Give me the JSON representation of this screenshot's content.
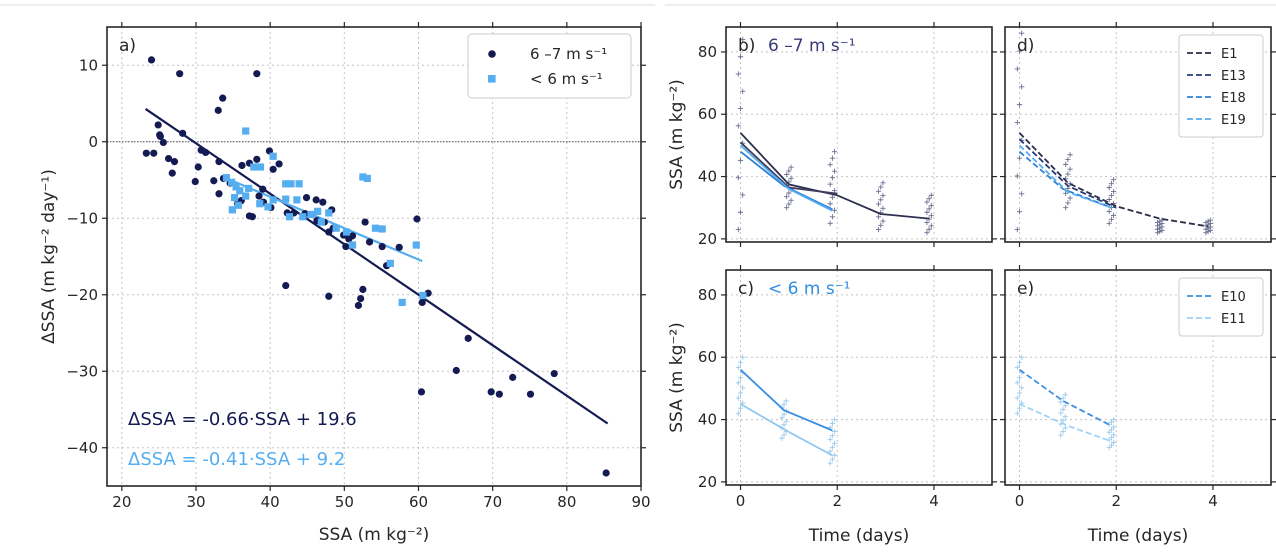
{
  "colors": {
    "dark": "#141a52",
    "light": "#55aef0",
    "mid": "#3d3d5c",
    "blue": "#2e7fd6",
    "paleblue": "#9ed2f5"
  },
  "chart_data": [
    {
      "id": "a",
      "type": "scatter",
      "panel_label": "a)",
      "xlabel": "SSA (m kg⁻²)",
      "ylabel": "ΔSSA (m kg⁻² day⁻¹)",
      "xlim": [
        18,
        90
      ],
      "ylim": [
        -45,
        15
      ],
      "xticks": [
        20,
        30,
        40,
        50,
        60,
        70,
        80,
        90
      ],
      "yticks": [
        -40,
        -30,
        -20,
        -10,
        0,
        10
      ],
      "grid": true,
      "legend": {
        "position": "top-right",
        "entries": [
          {
            "label": "6 –7 m s⁻¹",
            "marker": "circle",
            "color": "#141a52"
          },
          {
            "label": "< 6 m s⁻¹",
            "marker": "square",
            "color": "#55aef0"
          }
        ]
      },
      "series": [
        {
          "name": "6 –7 m s⁻¹",
          "marker": "circle",
          "color": "#141a52",
          "points": [
            [
              24,
              10.7
            ],
            [
              27.8,
              8.9
            ],
            [
              38.2,
              8.9
            ],
            [
              33.6,
              5.7
            ],
            [
              33,
              4.1
            ],
            [
              24.9,
              2.2
            ],
            [
              25.2,
              0.7
            ],
            [
              25.1,
              0.9
            ],
            [
              28.2,
              1.1
            ],
            [
              25.6,
              -0.1
            ],
            [
              23.3,
              -1.5
            ],
            [
              24.3,
              -1.5
            ],
            [
              26.3,
              -2.2
            ],
            [
              27.1,
              -2.6
            ],
            [
              30.7,
              -1.1
            ],
            [
              31.3,
              -1.4
            ],
            [
              30.3,
              -3.3
            ],
            [
              33.1,
              -2.6
            ],
            [
              32.4,
              -5.1
            ],
            [
              29.9,
              -5.2
            ],
            [
              26.8,
              -4.1
            ],
            [
              33.7,
              -4.8
            ],
            [
              34.6,
              -5.4
            ],
            [
              36.2,
              -3.1
            ],
            [
              37.2,
              -2.8
            ],
            [
              38.2,
              -2.3
            ],
            [
              39.9,
              -1.2
            ],
            [
              41.2,
              -2.9
            ],
            [
              40.4,
              -3.6
            ],
            [
              39,
              -6.2
            ],
            [
              38.5,
              -7.1
            ],
            [
              39.1,
              -7.9
            ],
            [
              36.1,
              -7.7
            ],
            [
              35.6,
              -8.1
            ],
            [
              33.1,
              -6.8
            ],
            [
              37.2,
              -9.7
            ],
            [
              37.6,
              -9.8
            ],
            [
              40.1,
              -8.6
            ],
            [
              42.3,
              -9.3
            ],
            [
              43.2,
              -9.3
            ],
            [
              44.9,
              -7.3
            ],
            [
              46.2,
              -7.6
            ],
            [
              47.1,
              -7.9
            ],
            [
              48.3,
              -8.9
            ],
            [
              47.3,
              -10.5
            ],
            [
              48.5,
              -11.3
            ],
            [
              49.9,
              -12.2
            ],
            [
              50.2,
              -13.7
            ],
            [
              50.6,
              -12.7
            ],
            [
              51.1,
              -12.3
            ],
            [
              47.9,
              -11.8
            ],
            [
              46.3,
              -10.3
            ],
            [
              44.7,
              -9.4
            ],
            [
              52.8,
              -10.5
            ],
            [
              53.4,
              -13.1
            ],
            [
              55.1,
              -13.7
            ],
            [
              55.7,
              -16.2
            ],
            [
              57.4,
              -13.8
            ],
            [
              59.8,
              -10.1
            ],
            [
              52.5,
              -19.3
            ],
            [
              52.2,
              -20.5
            ],
            [
              51.9,
              -21.4
            ],
            [
              47.9,
              -20.2
            ],
            [
              42.1,
              -18.8
            ],
            [
              60.5,
              -21
            ],
            [
              61.3,
              -19.8
            ],
            [
              66.7,
              -25.7
            ],
            [
              65.1,
              -29.9
            ],
            [
              60.4,
              -32.7
            ],
            [
              69.8,
              -32.7
            ],
            [
              70.9,
              -33
            ],
            [
              72.7,
              -30.8
            ],
            [
              75.1,
              -33
            ],
            [
              78.3,
              -30.3
            ],
            [
              85.3,
              -43.3
            ]
          ]
        },
        {
          "name": "< 6 m s⁻¹",
          "marker": "square",
          "color": "#55aef0",
          "points": [
            [
              36.7,
              1.4
            ],
            [
              40.4,
              -1.9
            ],
            [
              37.8,
              -3.3
            ],
            [
              38.7,
              -3.3
            ],
            [
              34.1,
              -4.7
            ],
            [
              34.8,
              -5.3
            ],
            [
              35.4,
              -5.9
            ],
            [
              35.9,
              -6.4
            ],
            [
              36.7,
              -7.1
            ],
            [
              35.2,
              -7.3
            ],
            [
              35.7,
              -8.3
            ],
            [
              34.9,
              -8.9
            ],
            [
              37.1,
              -6.1
            ],
            [
              38.6,
              -8.1
            ],
            [
              39.7,
              -8.5
            ],
            [
              40.4,
              -7.6
            ],
            [
              42.1,
              -7.5
            ],
            [
              42.8,
              -5.5
            ],
            [
              43.9,
              -5.5
            ],
            [
              42.1,
              -5.5
            ],
            [
              43.6,
              -7.6
            ],
            [
              45.5,
              -9.5
            ],
            [
              42.6,
              -9.8
            ],
            [
              44.4,
              -9.8
            ],
            [
              46.9,
              -10.5
            ],
            [
              48.9,
              -11.3
            ],
            [
              50.3,
              -11.8
            ],
            [
              51.1,
              -13.5
            ],
            [
              52.5,
              -4.6
            ],
            [
              53.1,
              -4.8
            ],
            [
              54.2,
              -11.3
            ],
            [
              55.1,
              -11.4
            ],
            [
              56.2,
              -15.9
            ],
            [
              57.8,
              -21
            ],
            [
              59.7,
              -13.5
            ],
            [
              60.6,
              -20.1
            ],
            [
              47.9,
              -9.3
            ],
            [
              46.4,
              -9.1
            ]
          ]
        }
      ],
      "fits": [
        {
          "slope": -0.66,
          "intercept": 19.6,
          "x_range": [
            23.2,
            85.5
          ],
          "color": "#141a52",
          "label": "ΔSSA = -0.66·SSA + 19.6"
        },
        {
          "slope": -0.41,
          "intercept": 9.2,
          "x_range": [
            34,
            60.5
          ],
          "color": "#55aef0",
          "label": "ΔSSA = -0.41·SSA + 9.2"
        }
      ],
      "hline": 0
    },
    {
      "id": "b",
      "type": "line",
      "panel_label": "b)",
      "panel_title": "6 –7 m s⁻¹",
      "panel_title_color": "#3a3a7a",
      "ylabel": "SSA (m kg⁻²)",
      "xlim": [
        -0.3,
        5.2
      ],
      "ylim": [
        19,
        88
      ],
      "xticks": [
        0,
        2,
        4
      ],
      "yticks": [
        20,
        40,
        60,
        80
      ],
      "show_xticklabels": false,
      "show_yticklabels": true,
      "lines": [
        {
          "color": "#2e3050",
          "dash": false,
          "x": [
            0,
            1,
            2,
            2.9,
            3.9
          ],
          "y": [
            54,
            37.5,
            34,
            28,
            26.5
          ]
        },
        {
          "color": "#3d3d5c",
          "dash": false,
          "x": [
            0,
            1,
            2
          ],
          "y": [
            51,
            36.5,
            34.5
          ]
        },
        {
          "color": "#2e7fd6",
          "dash": false,
          "x": [
            0,
            0.9,
            1.9
          ],
          "y": [
            48,
            37,
            29.5
          ]
        },
        {
          "color": "#55aef0",
          "dash": false,
          "x": [
            0,
            1,
            1.9
          ],
          "y": [
            50,
            36,
            29
          ]
        }
      ],
      "markers": [
        {
          "x": 0,
          "ymin": 23,
          "ymax": 84,
          "color": "#6a6f90"
        },
        {
          "x": 1,
          "ymin": 30,
          "ymax": 43,
          "color": "#6a6f90"
        },
        {
          "x": 1.9,
          "ymin": 25,
          "ymax": 48,
          "color": "#6a6f90"
        },
        {
          "x": 2.9,
          "ymin": 23,
          "ymax": 38,
          "color": "#6a6f90"
        },
        {
          "x": 3.9,
          "ymin": 22,
          "ymax": 34,
          "color": "#6a6f90"
        }
      ]
    },
    {
      "id": "d",
      "type": "line",
      "panel_label": "d)",
      "xlim": [
        -0.3,
        5.2
      ],
      "ylim": [
        19,
        88
      ],
      "xticks": [
        0,
        2,
        4
      ],
      "yticks": [
        20,
        40,
        60,
        80
      ],
      "show_xticklabels": false,
      "show_yticklabels": false,
      "legend": {
        "position": "top-right",
        "entries": [
          "E1",
          "E13",
          "E18",
          "E19"
        ]
      },
      "lines": [
        {
          "name": "E1",
          "color": "#2a2c48",
          "dash": true,
          "x": [
            0,
            1,
            2,
            2.9,
            3.9
          ],
          "y": [
            54,
            38,
            30.5,
            26.5,
            24
          ]
        },
        {
          "name": "E13",
          "color": "#243a78",
          "dash": true,
          "x": [
            0,
            1,
            2
          ],
          "y": [
            52,
            37,
            30
          ]
        },
        {
          "name": "E18",
          "color": "#2e7fd6",
          "dash": true,
          "x": [
            0,
            0.9,
            1.9
          ],
          "y": [
            48,
            36,
            30
          ]
        },
        {
          "name": "E19",
          "color": "#55aef0",
          "dash": true,
          "x": [
            0,
            1,
            1.9
          ],
          "y": [
            50,
            35,
            30
          ]
        }
      ],
      "markers": [
        {
          "x": 0,
          "ymin": 23,
          "ymax": 86,
          "color": "#6a6f90"
        },
        {
          "x": 1,
          "ymin": 30,
          "ymax": 47,
          "color": "#6a6f90"
        },
        {
          "x": 1.9,
          "ymin": 25,
          "ymax": 39,
          "color": "#6a6f90"
        },
        {
          "x": 2.9,
          "ymin": 22,
          "ymax": 26,
          "color": "#6a6f90"
        },
        {
          "x": 3.9,
          "ymin": 22,
          "ymax": 26,
          "color": "#6a6f90"
        }
      ]
    },
    {
      "id": "c",
      "type": "line",
      "panel_label": "c)",
      "panel_title": "< 6 m s⁻¹",
      "panel_title_color": "#2e8ee0",
      "xlabel": "Time (days)",
      "ylabel": "SSA (m kg⁻²)",
      "xlim": [
        -0.3,
        5.2
      ],
      "ylim": [
        19,
        88
      ],
      "xticks": [
        0,
        2,
        4
      ],
      "yticks": [
        20,
        40,
        60,
        80
      ],
      "show_xticklabels": true,
      "show_yticklabels": true,
      "lines": [
        {
          "color": "#3a8fe0",
          "dash": false,
          "x": [
            0,
            0.9,
            1.9
          ],
          "y": [
            56,
            43,
            36.5
          ]
        },
        {
          "color": "#8fc8f0",
          "dash": false,
          "x": [
            0,
            1,
            1.9
          ],
          "y": [
            45,
            36,
            28.5
          ]
        }
      ],
      "markers": [
        {
          "x": 0,
          "ymin": 42,
          "ymax": 60,
          "color": "#9ccaec"
        },
        {
          "x": 0.9,
          "ymin": 34,
          "ymax": 46,
          "color": "#9ccaec"
        },
        {
          "x": 1.9,
          "ymin": 26,
          "ymax": 40,
          "color": "#9ccaec"
        }
      ]
    },
    {
      "id": "e",
      "type": "line",
      "panel_label": "e)",
      "xlabel": "Time (days)",
      "xlim": [
        -0.3,
        5.2
      ],
      "ylim": [
        19,
        88
      ],
      "xticks": [
        0,
        2,
        4
      ],
      "yticks": [
        20,
        40,
        60,
        80
      ],
      "show_xticklabels": true,
      "show_yticklabels": false,
      "legend": {
        "position": "top-right",
        "entries": [
          "E10",
          "E11"
        ]
      },
      "lines": [
        {
          "name": "E10",
          "color": "#3a8fe0",
          "dash": true,
          "x": [
            0,
            0.9,
            1.9
          ],
          "y": [
            56,
            46,
            38
          ]
        },
        {
          "name": "E11",
          "color": "#9ed2f5",
          "dash": true,
          "x": [
            0,
            1,
            1.9
          ],
          "y": [
            45,
            38,
            33
          ]
        }
      ],
      "markers": [
        {
          "x": 0,
          "ymin": 42,
          "ymax": 60,
          "color": "#9ccaec"
        },
        {
          "x": 0.9,
          "ymin": 35,
          "ymax": 48,
          "color": "#9ccaec"
        },
        {
          "x": 1.9,
          "ymin": 31,
          "ymax": 40,
          "color": "#9ccaec"
        }
      ]
    }
  ]
}
